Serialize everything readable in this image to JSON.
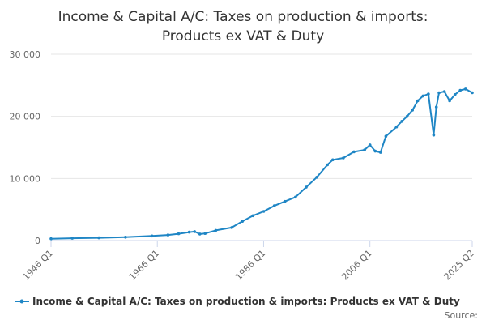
{
  "chart_data": {
    "type": "line",
    "title_lines": [
      "Income & Capital A/C: Taxes on production & imports:",
      "Products ex VAT & Duty"
    ],
    "xlabel": "",
    "ylabel": "",
    "ylim": [
      0,
      30000
    ],
    "y_ticks": [
      {
        "value": 0,
        "label": "0"
      },
      {
        "value": 10000,
        "label": "10 000"
      },
      {
        "value": 20000,
        "label": "20 000"
      },
      {
        "value": 30000,
        "label": "30 000"
      }
    ],
    "x_ticks": [
      {
        "year": 1946,
        "label": "1946 Q1"
      },
      {
        "year": 1966,
        "label": "1966 Q1"
      },
      {
        "year": 1986,
        "label": "1986 Q1"
      },
      {
        "year": 2006,
        "label": "2006 Q1"
      },
      {
        "year": 2025.25,
        "label": "2025 Q2"
      }
    ],
    "series": [
      {
        "name": "Income & Capital A/C: Taxes on production & imports: Products ex VAT & Duty",
        "color": "#1f86c5",
        "points": [
          [
            1946,
            300
          ],
          [
            1950,
            380
          ],
          [
            1955,
            450
          ],
          [
            1960,
            550
          ],
          [
            1965,
            750
          ],
          [
            1968,
            900
          ],
          [
            1970,
            1100
          ],
          [
            1972,
            1350
          ],
          [
            1973,
            1450
          ],
          [
            1974,
            1050
          ],
          [
            1975,
            1150
          ],
          [
            1977,
            1650
          ],
          [
            1980,
            2100
          ],
          [
            1982,
            3100
          ],
          [
            1984,
            4000
          ],
          [
            1986,
            4700
          ],
          [
            1988,
            5600
          ],
          [
            1990,
            6300
          ],
          [
            1992,
            7000
          ],
          [
            1994,
            8600
          ],
          [
            1996,
            10200
          ],
          [
            1998,
            12200
          ],
          [
            1999,
            13000
          ],
          [
            2001,
            13300
          ],
          [
            2003,
            14300
          ],
          [
            2005,
            14600
          ],
          [
            2006,
            15400
          ],
          [
            2007,
            14400
          ],
          [
            2008,
            14200
          ],
          [
            2009,
            16800
          ],
          [
            2011,
            18300
          ],
          [
            2012,
            19200
          ],
          [
            2013,
            20000
          ],
          [
            2014,
            21000
          ],
          [
            2015,
            22500
          ],
          [
            2016,
            23300
          ],
          [
            2017,
            23600
          ],
          [
            2018,
            17000
          ],
          [
            2018.5,
            21500
          ],
          [
            2019,
            23800
          ],
          [
            2020,
            24000
          ],
          [
            2021,
            22500
          ],
          [
            2022,
            23500
          ],
          [
            2023,
            24200
          ],
          [
            2024,
            24400
          ],
          [
            2025.25,
            23800
          ]
        ]
      }
    ],
    "legend_position": "bottom-center",
    "source_label": "Source:"
  }
}
